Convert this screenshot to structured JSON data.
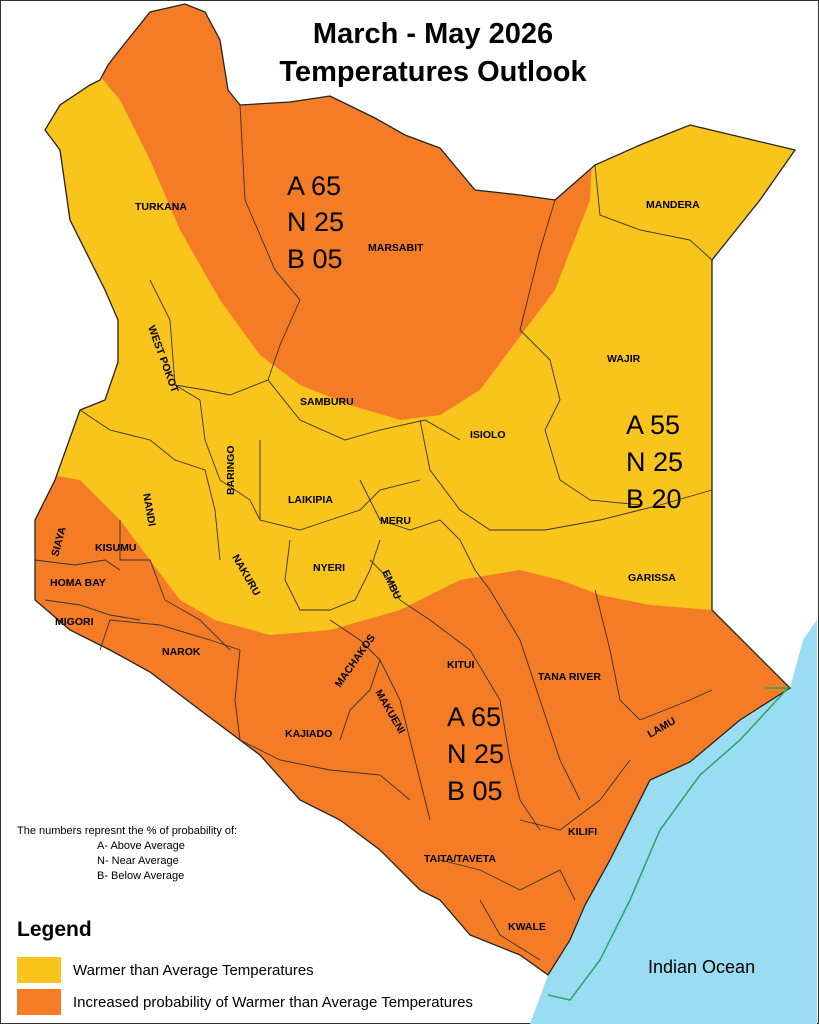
{
  "title": {
    "line1": "March - May 2026",
    "line2": "Temperatures Outlook"
  },
  "colors": {
    "yellow": "#f9c41b",
    "orange": "#f47c26",
    "ocean": "#9adcf1",
    "boundary": "#222222",
    "marine": "#2aa46a"
  },
  "counties": {
    "turkana": "TURKANA",
    "marsabit": "MARSABIT",
    "mandera": "MANDERA",
    "west_pokot": "WEST POKOT",
    "wajir": "WAJIR",
    "samburu": "SAMBURU",
    "isiolo": "ISIOLO",
    "baringo": "BARINGO",
    "nandi": "NANDI",
    "laikipia": "LAIKIPIA",
    "meru": "MERU",
    "siaya": "SIAYA",
    "kisumu": "KISUMU",
    "homa_bay": "HOMA BAY",
    "nakuru": "NAKURU",
    "nyeri": "NYERI",
    "embu": "EMBU",
    "garissa": "GARISSA",
    "migori": "MIGORI",
    "narok": "NAROK",
    "machakos": "MACHAKOS",
    "kitui": "KITUI",
    "tana_river": "TANA RIVER",
    "makueni": "MAKUENI",
    "kajiado": "KAJIADO",
    "lamu": "LAMU",
    "kilifi": "KILIFI",
    "taita_taveta": "TAITA/TAVETA",
    "kwale": "KWALE"
  },
  "probabilities": {
    "north": {
      "a": "A 65",
      "n": "N 25",
      "b": "B 05"
    },
    "east": {
      "a": "A 55",
      "n": "N 25",
      "b": "B 20"
    },
    "south": {
      "a": "A 65",
      "n": "N 25",
      "b": "B 05"
    }
  },
  "ocean_label": "Indian Ocean",
  "note": {
    "heading": "The numbers represnt the % of probability of:",
    "a": "A- Above Average",
    "n": "N- Near Average",
    "b": "B- Below Average"
  },
  "legend": {
    "title": "Legend",
    "items": [
      {
        "label": "Warmer than Average Temperatures",
        "color": "#f9c41b"
      },
      {
        "label": "Increased probability of Warmer than Average Temperatures",
        "color": "#f47c26"
      }
    ]
  }
}
